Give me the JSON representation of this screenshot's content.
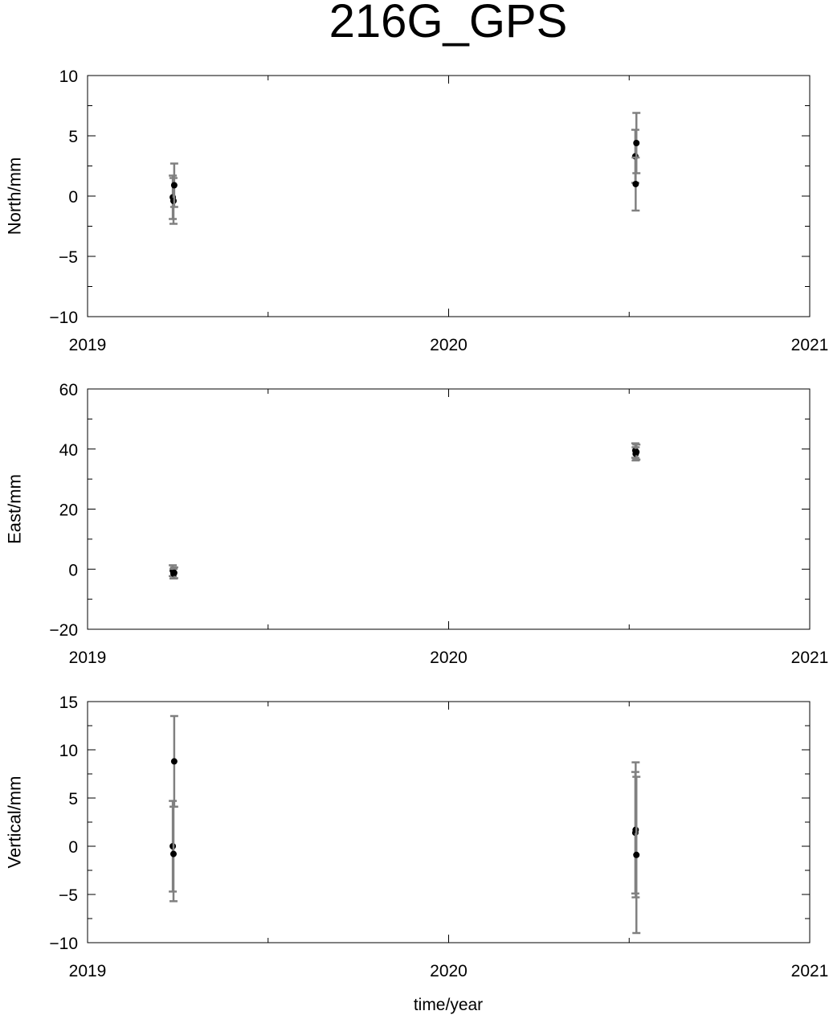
{
  "chart_data": {
    "title": "216G_GPS",
    "xlabel": "time/year",
    "xlim": [
      2019,
      2021
    ],
    "xticks": [
      "2019",
      "2020",
      "2021"
    ],
    "error_bar_color": "#808080",
    "point_color": "#000000",
    "panels": [
      {
        "type": "scatter",
        "ylabel": "North/mm",
        "ylim": [
          -10,
          10
        ],
        "yticks": [
          "10",
          "5",
          "0",
          "−5",
          "−10"
        ],
        "points": [
          {
            "x": 2019.236,
            "y": -0.1,
            "err": 1.8
          },
          {
            "x": 2019.238,
            "y": -0.4,
            "err": 1.9
          },
          {
            "x": 2019.24,
            "y": 0.9,
            "err": 1.8
          },
          {
            "x": 2020.517,
            "y": 3.3,
            "err": 2.2
          },
          {
            "x": 2020.518,
            "y": 1.0,
            "err": 2.2
          },
          {
            "x": 2020.52,
            "y": 4.4,
            "err": 2.5
          }
        ]
      },
      {
        "type": "scatter",
        "ylabel": "East/mm",
        "ylim": [
          -20,
          60
        ],
        "yticks": [
          "60",
          "40",
          "20",
          "0",
          "−20"
        ],
        "points": [
          {
            "x": 2019.236,
            "y": -0.5,
            "err": 1.8
          },
          {
            "x": 2019.238,
            "y": -1.5,
            "err": 1.6
          },
          {
            "x": 2019.24,
            "y": -1.2,
            "err": 1.8
          },
          {
            "x": 2020.517,
            "y": 39.5,
            "err": 2.4
          },
          {
            "x": 2020.518,
            "y": 38.4,
            "err": 2.2
          },
          {
            "x": 2020.52,
            "y": 39.0,
            "err": 2.5
          }
        ]
      },
      {
        "type": "scatter",
        "ylabel": "Vertical/mm",
        "ylim": [
          -10,
          15
        ],
        "yticks": [
          "15",
          "10",
          "5",
          "0",
          "−5",
          "−10"
        ],
        "points": [
          {
            "x": 2019.236,
            "y": 0.0,
            "err": 4.7
          },
          {
            "x": 2019.238,
            "y": -0.8,
            "err": 4.9
          },
          {
            "x": 2019.24,
            "y": 8.8,
            "err": 4.7
          },
          {
            "x": 2020.517,
            "y": 1.4,
            "err": 6.3
          },
          {
            "x": 2020.518,
            "y": 1.7,
            "err": 7.0
          },
          {
            "x": 2020.52,
            "y": -0.9,
            "err": 8.1
          }
        ]
      }
    ]
  }
}
